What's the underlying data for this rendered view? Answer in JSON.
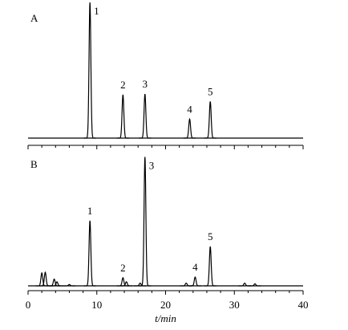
{
  "chart_data": [
    {
      "type": "chromatogram",
      "label": "A",
      "x": [
        9.0,
        13.8,
        17.0,
        23.5,
        26.5
      ],
      "values": [
        100,
        32,
        32.5,
        14,
        27
      ],
      "categories": [
        "1",
        "2",
        "3",
        "4",
        "5"
      ],
      "ylim": [
        0,
        100
      ],
      "xlim": [
        0,
        40
      ],
      "xticks": [
        0,
        10,
        20,
        30,
        40
      ]
    },
    {
      "type": "chromatogram",
      "label": "B",
      "x": [
        2.0,
        2.5,
        3.8,
        4.2,
        6.0,
        9.0,
        13.8,
        14.3,
        16.3,
        17.0,
        23.0,
        24.3,
        26.5,
        31.5,
        33.0
      ],
      "values": [
        9.5,
        10,
        5,
        3,
        1,
        48,
        6,
        3,
        2,
        95,
        2,
        6.5,
        29,
        2,
        1.5
      ],
      "categories": [
        null,
        null,
        null,
        null,
        null,
        "1",
        "2",
        null,
        null,
        "3",
        null,
        "4",
        "5",
        null,
        null
      ],
      "ylim": [
        0,
        100
      ],
      "xlim": [
        0,
        40
      ],
      "xticks": [
        0,
        10,
        20,
        30,
        40
      ],
      "xlabel": "t/min"
    }
  ]
}
